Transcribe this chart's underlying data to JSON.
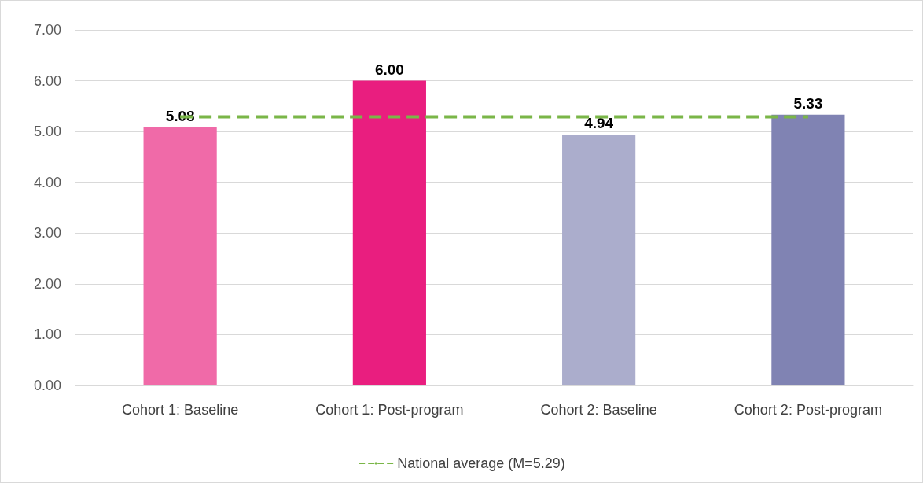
{
  "chart_data": {
    "type": "bar",
    "categories": [
      "Cohort 1: Baseline",
      "Cohort 1: Post-program",
      "Cohort 2: Baseline",
      "Cohort 2: Post-program"
    ],
    "series": [
      {
        "colors": [
          "#f06aa8",
          "#e91e7f",
          "#abadcc",
          "#8083b3"
        ],
        "values": [
          5.08,
          6.0,
          4.94,
          5.33
        ],
        "value_labels": [
          "5.08",
          "6.00",
          "4.94",
          "5.33"
        ]
      },
      {
        "type": "line",
        "name": "National average (M=5.29)",
        "color": "#7ab648",
        "values": [
          5.29,
          5.29,
          5.29,
          5.29
        ],
        "line_style": "dashed",
        "marker": "none"
      }
    ],
    "ylim": [
      0,
      7
    ],
    "yticks": [
      {
        "value": 0,
        "label": "0.00"
      },
      {
        "value": 1,
        "label": "1.00"
      },
      {
        "value": 2,
        "label": "2.00"
      },
      {
        "value": 3,
        "label": "3.00"
      },
      {
        "value": 4,
        "label": "4.00"
      },
      {
        "value": 5,
        "label": "5.00"
      },
      {
        "value": 6,
        "label": "6.00"
      },
      {
        "value": 7,
        "label": "7.00"
      }
    ],
    "grid": "y",
    "legend": "bottom"
  }
}
